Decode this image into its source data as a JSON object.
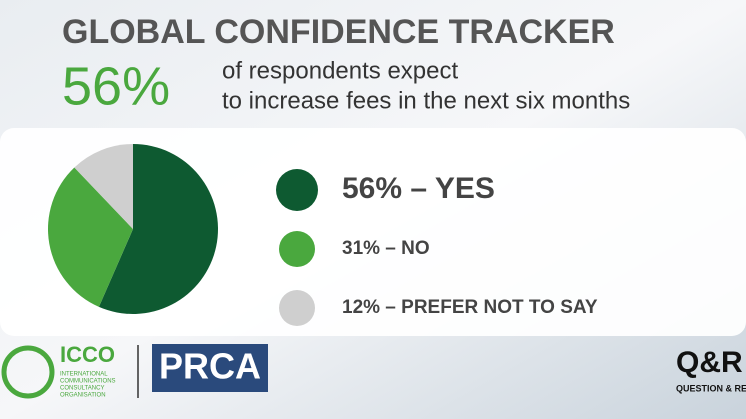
{
  "chart_data": {
    "type": "pie",
    "title": "GLOBAL CONFIDENCE TRACKER",
    "headline": "56%",
    "subtitle_lines": [
      "of respondents expect",
      "to increase fees in the next six months"
    ],
    "values": [
      56,
      31,
      12
    ],
    "value_labels": [
      "56% – YES",
      "31% – NO",
      "12% – PREFER NOT TO SAY"
    ],
    "colors": [
      "#0e5a31",
      "#4aa83e",
      "#cfcfcf"
    ],
    "logos": {
      "icco": "ICCO",
      "icco_sub": [
        "INTERNATIONAL",
        "COMMUNICATIONS",
        "CONSULTANCY",
        "ORGANISATION"
      ],
      "prca": "PRCA",
      "qr": "Q&R",
      "qr_sub": "QUESTION & RETAIL"
    }
  }
}
